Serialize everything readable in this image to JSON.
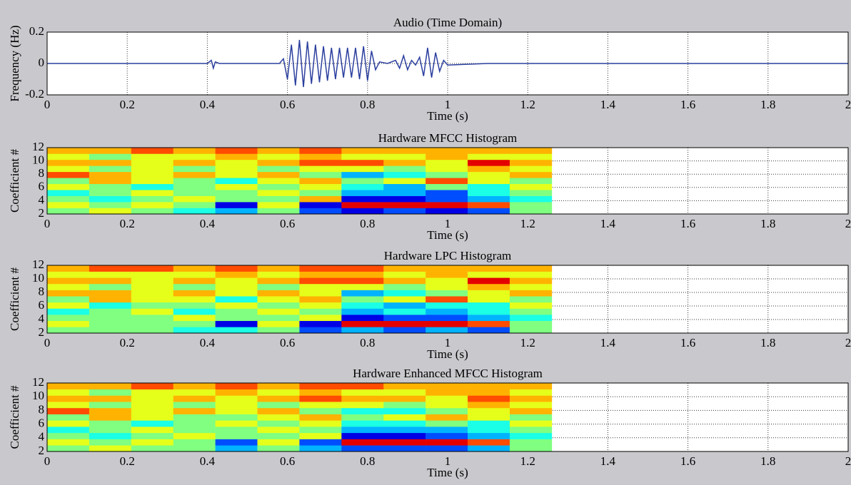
{
  "chart_data": [
    {
      "type": "line",
      "title": "Audio (Time Domain)",
      "xlabel": "Time (s)",
      "ylabel": "Frequency (Hz)",
      "color": "#2b3f9e",
      "x": [
        0,
        0.1,
        0.2,
        0.3,
        0.4,
        0.41,
        0.415,
        0.42,
        0.43,
        0.5,
        0.58,
        0.59,
        0.6,
        0.61,
        0.62,
        0.63,
        0.64,
        0.65,
        0.66,
        0.67,
        0.68,
        0.69,
        0.7,
        0.71,
        0.72,
        0.73,
        0.74,
        0.75,
        0.76,
        0.77,
        0.78,
        0.79,
        0.8,
        0.81,
        0.82,
        0.83,
        0.85,
        0.87,
        0.88,
        0.89,
        0.9,
        0.91,
        0.92,
        0.93,
        0.94,
        0.95,
        0.96,
        0.97,
        0.98,
        0.99,
        1.0,
        1.1,
        1.2,
        1.3,
        1.4,
        1.5,
        1.6,
        1.7,
        1.8,
        1.9,
        2.0
      ],
      "values": [
        0,
        0,
        0,
        0,
        0,
        0.02,
        -0.03,
        0.01,
        0,
        0,
        0,
        0.03,
        -0.1,
        0.12,
        -0.14,
        0.15,
        -0.15,
        0.14,
        -0.13,
        0.12,
        -0.12,
        0.11,
        -0.11,
        0.1,
        -0.1,
        0.1,
        -0.09,
        0.1,
        -0.09,
        0.1,
        -0.1,
        0.11,
        -0.11,
        0.08,
        -0.04,
        0.01,
        0,
        0.02,
        -0.03,
        0.05,
        -0.04,
        0.02,
        -0.01,
        0.04,
        -0.08,
        0.1,
        -0.09,
        0.07,
        -0.05,
        0.02,
        -0.01,
        0,
        0,
        0,
        0,
        0,
        0,
        0,
        0,
        0,
        0
      ],
      "xlim": [
        0,
        2
      ],
      "ylim": [
        -0.2,
        0.2
      ],
      "xticks": [
        0,
        0.2,
        0.4,
        0.6,
        0.8,
        1,
        1.2,
        1.4,
        1.6,
        1.8,
        2
      ],
      "yticks": [
        -0.2,
        0,
        0.2
      ],
      "grid": true
    },
    {
      "type": "heatmap",
      "title": "Hardware MFCC Histogram",
      "xlabel": "Time (s)",
      "ylabel": "Coefficient #",
      "colormap": "jet",
      "x_bins": [
        0,
        0.105,
        0.21,
        0.315,
        0.42,
        0.525,
        0.63,
        0.735,
        0.84,
        0.945,
        1.05,
        1.155,
        1.26
      ],
      "rows": [
        2,
        3,
        4,
        5,
        6,
        7,
        8,
        9,
        10,
        11,
        12
      ],
      "z": [
        [
          0.5,
          0.6,
          0.5,
          0.4,
          0.3,
          0.5,
          0.2,
          0.1,
          0.2,
          0.1,
          0.2,
          0.5
        ],
        [
          0.6,
          0.5,
          0.6,
          0.5,
          0.1,
          0.6,
          0.1,
          0.9,
          0.9,
          0.9,
          0.8,
          0.5
        ],
        [
          0.5,
          0.4,
          0.5,
          0.6,
          0.5,
          0.5,
          0.7,
          0.1,
          0.1,
          0.2,
          0.3,
          0.4
        ],
        [
          0.4,
          0.5,
          0.6,
          0.5,
          0.5,
          0.6,
          0.5,
          0.3,
          0.3,
          0.2,
          0.4,
          0.5
        ],
        [
          0.6,
          0.5,
          0.4,
          0.5,
          0.6,
          0.5,
          0.6,
          0.4,
          0.3,
          0.5,
          0.4,
          0.6
        ],
        [
          0.5,
          0.7,
          0.6,
          0.5,
          0.4,
          0.6,
          0.7,
          0.5,
          0.6,
          0.8,
          0.6,
          0.5
        ],
        [
          0.8,
          0.7,
          0.6,
          0.7,
          0.6,
          0.7,
          0.5,
          0.3,
          0.4,
          0.5,
          0.6,
          0.7
        ],
        [
          0.6,
          0.5,
          0.6,
          0.5,
          0.6,
          0.5,
          0.6,
          0.6,
          0.5,
          0.6,
          0.7,
          0.6
        ],
        [
          0.7,
          0.7,
          0.6,
          0.7,
          0.6,
          0.7,
          0.8,
          0.8,
          0.7,
          0.6,
          0.9,
          0.7
        ],
        [
          0.6,
          0.5,
          0.6,
          0.6,
          0.7,
          0.6,
          0.7,
          0.6,
          0.6,
          0.7,
          0.6,
          0.6
        ],
        [
          0.7,
          0.7,
          0.8,
          0.7,
          0.8,
          0.7,
          0.8,
          0.7,
          0.7,
          0.7,
          0.7,
          0.7
        ]
      ],
      "xlim": [
        0,
        2
      ],
      "ylim": [
        2,
        12
      ],
      "xticks": [
        0,
        0.2,
        0.4,
        0.6,
        0.8,
        1,
        1.2,
        1.4,
        1.6,
        1.8,
        2
      ],
      "yticks": [
        2,
        4,
        6,
        8,
        10,
        12
      ],
      "grid": true
    },
    {
      "type": "heatmap",
      "title": "Hardware LPC Histogram",
      "xlabel": "Time (s)",
      "ylabel": "Coefficient #",
      "colormap": "jet",
      "x_bins": [
        0,
        0.105,
        0.21,
        0.315,
        0.42,
        0.525,
        0.63,
        0.735,
        0.84,
        0.945,
        1.05,
        1.155,
        1.26
      ],
      "rows": [
        2,
        3,
        4,
        5,
        6,
        7,
        8,
        9,
        10,
        11,
        12
      ],
      "z": [
        [
          0.5,
          0.5,
          0.5,
          0.4,
          0.4,
          0.5,
          0.2,
          0.3,
          0.2,
          0.3,
          0.2,
          0.5
        ],
        [
          0.6,
          0.5,
          0.5,
          0.5,
          0.1,
          0.6,
          0.1,
          0.9,
          0.9,
          0.9,
          0.8,
          0.5
        ],
        [
          0.5,
          0.5,
          0.5,
          0.6,
          0.5,
          0.5,
          0.6,
          0.1,
          0.2,
          0.2,
          0.3,
          0.4
        ],
        [
          0.4,
          0.5,
          0.6,
          0.4,
          0.5,
          0.6,
          0.5,
          0.3,
          0.4,
          0.3,
          0.4,
          0.5
        ],
        [
          0.6,
          0.4,
          0.5,
          0.5,
          0.6,
          0.5,
          0.6,
          0.4,
          0.3,
          0.4,
          0.4,
          0.6
        ],
        [
          0.5,
          0.7,
          0.6,
          0.6,
          0.4,
          0.6,
          0.7,
          0.5,
          0.6,
          0.8,
          0.6,
          0.5
        ],
        [
          0.7,
          0.7,
          0.6,
          0.7,
          0.6,
          0.7,
          0.6,
          0.3,
          0.4,
          0.5,
          0.6,
          0.7
        ],
        [
          0.6,
          0.5,
          0.6,
          0.5,
          0.6,
          0.5,
          0.6,
          0.6,
          0.5,
          0.6,
          0.7,
          0.6
        ],
        [
          0.7,
          0.7,
          0.6,
          0.7,
          0.6,
          0.7,
          0.8,
          0.8,
          0.7,
          0.6,
          0.9,
          0.7
        ],
        [
          0.6,
          0.6,
          0.6,
          0.6,
          0.7,
          0.6,
          0.7,
          0.7,
          0.6,
          0.7,
          0.6,
          0.6
        ],
        [
          0.7,
          0.8,
          0.8,
          0.7,
          0.8,
          0.7,
          0.8,
          0.8,
          0.7,
          0.7,
          0.7,
          0.7
        ]
      ],
      "xlim": [
        0,
        2
      ],
      "ylim": [
        2,
        12
      ],
      "xticks": [
        0,
        0.2,
        0.4,
        0.6,
        0.8,
        1,
        1.2,
        1.4,
        1.6,
        1.8,
        2
      ],
      "yticks": [
        2,
        4,
        6,
        8,
        10,
        12
      ],
      "grid": true
    },
    {
      "type": "heatmap",
      "title": "Hardware Enhanced MFCC Histogram",
      "xlabel": "Time (s)",
      "ylabel": "Coefficient #",
      "colormap": "jet",
      "x_bins": [
        0,
        0.105,
        0.21,
        0.315,
        0.42,
        0.525,
        0.63,
        0.735,
        0.84,
        0.945,
        1.05,
        1.155,
        1.26
      ],
      "rows": [
        2,
        3,
        4,
        5,
        6,
        7,
        8,
        9,
        10,
        11,
        12
      ],
      "z": [
        [
          0.5,
          0.6,
          0.5,
          0.5,
          0.3,
          0.5,
          0.3,
          0.2,
          0.2,
          0.2,
          0.3,
          0.5
        ],
        [
          0.6,
          0.5,
          0.6,
          0.5,
          0.2,
          0.6,
          0.2,
          0.9,
          0.9,
          0.9,
          0.8,
          0.5
        ],
        [
          0.5,
          0.4,
          0.5,
          0.6,
          0.5,
          0.5,
          0.6,
          0.1,
          0.1,
          0.2,
          0.3,
          0.4
        ],
        [
          0.4,
          0.5,
          0.6,
          0.5,
          0.5,
          0.6,
          0.5,
          0.3,
          0.3,
          0.3,
          0.4,
          0.5
        ],
        [
          0.6,
          0.5,
          0.4,
          0.5,
          0.6,
          0.5,
          0.6,
          0.4,
          0.4,
          0.5,
          0.4,
          0.6
        ],
        [
          0.5,
          0.7,
          0.6,
          0.5,
          0.5,
          0.6,
          0.7,
          0.5,
          0.6,
          0.7,
          0.6,
          0.5
        ],
        [
          0.8,
          0.7,
          0.6,
          0.7,
          0.6,
          0.7,
          0.5,
          0.4,
          0.4,
          0.5,
          0.6,
          0.7
        ],
        [
          0.6,
          0.5,
          0.6,
          0.5,
          0.6,
          0.5,
          0.6,
          0.6,
          0.5,
          0.6,
          0.7,
          0.6
        ],
        [
          0.7,
          0.7,
          0.6,
          0.7,
          0.6,
          0.7,
          0.8,
          0.7,
          0.7,
          0.6,
          0.8,
          0.7
        ],
        [
          0.6,
          0.5,
          0.6,
          0.6,
          0.7,
          0.6,
          0.7,
          0.6,
          0.6,
          0.7,
          0.7,
          0.6
        ],
        [
          0.7,
          0.7,
          0.8,
          0.7,
          0.8,
          0.7,
          0.8,
          0.8,
          0.7,
          0.7,
          0.7,
          0.7
        ]
      ],
      "xlim": [
        0,
        2
      ],
      "ylim": [
        2,
        12
      ],
      "xticks": [
        0,
        0.2,
        0.4,
        0.6,
        0.8,
        1,
        1.2,
        1.4,
        1.6,
        1.8,
        2
      ],
      "yticks": [
        2,
        4,
        6,
        8,
        10,
        12
      ],
      "grid": true
    }
  ]
}
